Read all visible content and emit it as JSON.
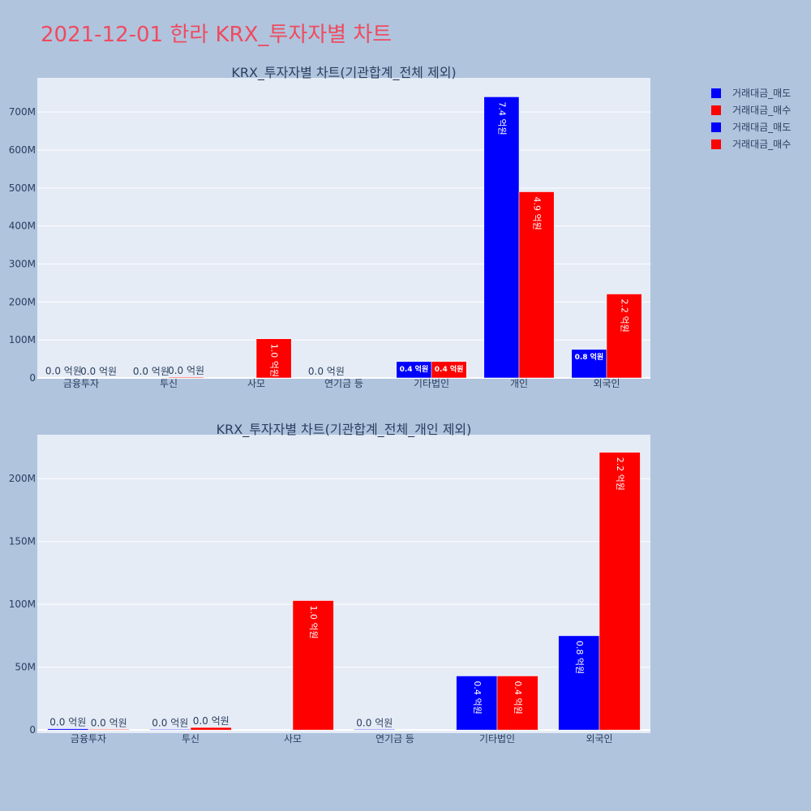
{
  "title": "2021-12-01 한라 KRX_투자자별 차트",
  "legend": [
    {
      "label": "거래대금_매도",
      "color": "#0000ff"
    },
    {
      "label": "거래대금_매수",
      "color": "#ff0000"
    },
    {
      "label": "거래대금_매도",
      "color": "#0000ff"
    },
    {
      "label": "거래대금_매수",
      "color": "#ff0000"
    }
  ],
  "chart_data": [
    {
      "type": "bar",
      "title": "KRX_투자자별 차트(기관합계_전체 제외)",
      "categories": [
        "금융투자",
        "투신",
        "사모",
        "연기금 등",
        "기타법인",
        "개인",
        "외국인"
      ],
      "ylim": [
        0,
        790000000
      ],
      "yticks": [
        0,
        100000000,
        200000000,
        300000000,
        400000000,
        500000000,
        600000000,
        700000000
      ],
      "ytick_labels": [
        "0",
        "100M",
        "200M",
        "300M",
        "400M",
        "500M",
        "600M",
        "700M"
      ],
      "series": [
        {
          "name": "거래대금_매도",
          "color": "#0000ff",
          "values": [
            1000000,
            500000,
            0,
            500000,
            43000000,
            740000000,
            75000000
          ],
          "labels": [
            "0.0 억원",
            "0.0 억원",
            "",
            "0.0 억원",
            "0.4 억원",
            "7.4 억원",
            "0.8 억원"
          ]
        },
        {
          "name": "거래대금_매수",
          "color": "#ff0000",
          "values": [
            500000,
            2000000,
            103000000,
            0,
            43000000,
            490000000,
            221000000
          ],
          "labels": [
            "0.0 억원",
            "0.0 억원",
            "1.0 억원",
            "",
            "0.4 억원",
            "4.9 억원",
            "2.2 억원"
          ]
        }
      ]
    },
    {
      "type": "bar",
      "title": "KRX_투자자별 차트(기관합계_전체_개인 제외)",
      "categories": [
        "금융투자",
        "투신",
        "사모",
        "연기금 등",
        "기타법인",
        "외국인"
      ],
      "ylim": [
        -2500000,
        235000000
      ],
      "yticks": [
        0,
        50000000,
        100000000,
        150000000,
        200000000
      ],
      "ytick_labels": [
        "0",
        "50M",
        "100M",
        "150M",
        "200M"
      ],
      "series": [
        {
          "name": "거래대금_매도",
          "color": "#0000ff",
          "values": [
            1000000,
            500000,
            0,
            500000,
            43000000,
            75000000
          ],
          "labels": [
            "0.0 억원",
            "0.0 억원",
            "",
            "0.0 억원",
            "0.4 억원",
            "0.8 억원"
          ]
        },
        {
          "name": "거래대금_매수",
          "color": "#ff0000",
          "values": [
            500000,
            2000000,
            103000000,
            0,
            43000000,
            221000000
          ],
          "labels": [
            "0.0 억원",
            "0.0 억원",
            "1.0 억원",
            "",
            "0.4 억원",
            "2.2 억원"
          ]
        }
      ]
    }
  ]
}
